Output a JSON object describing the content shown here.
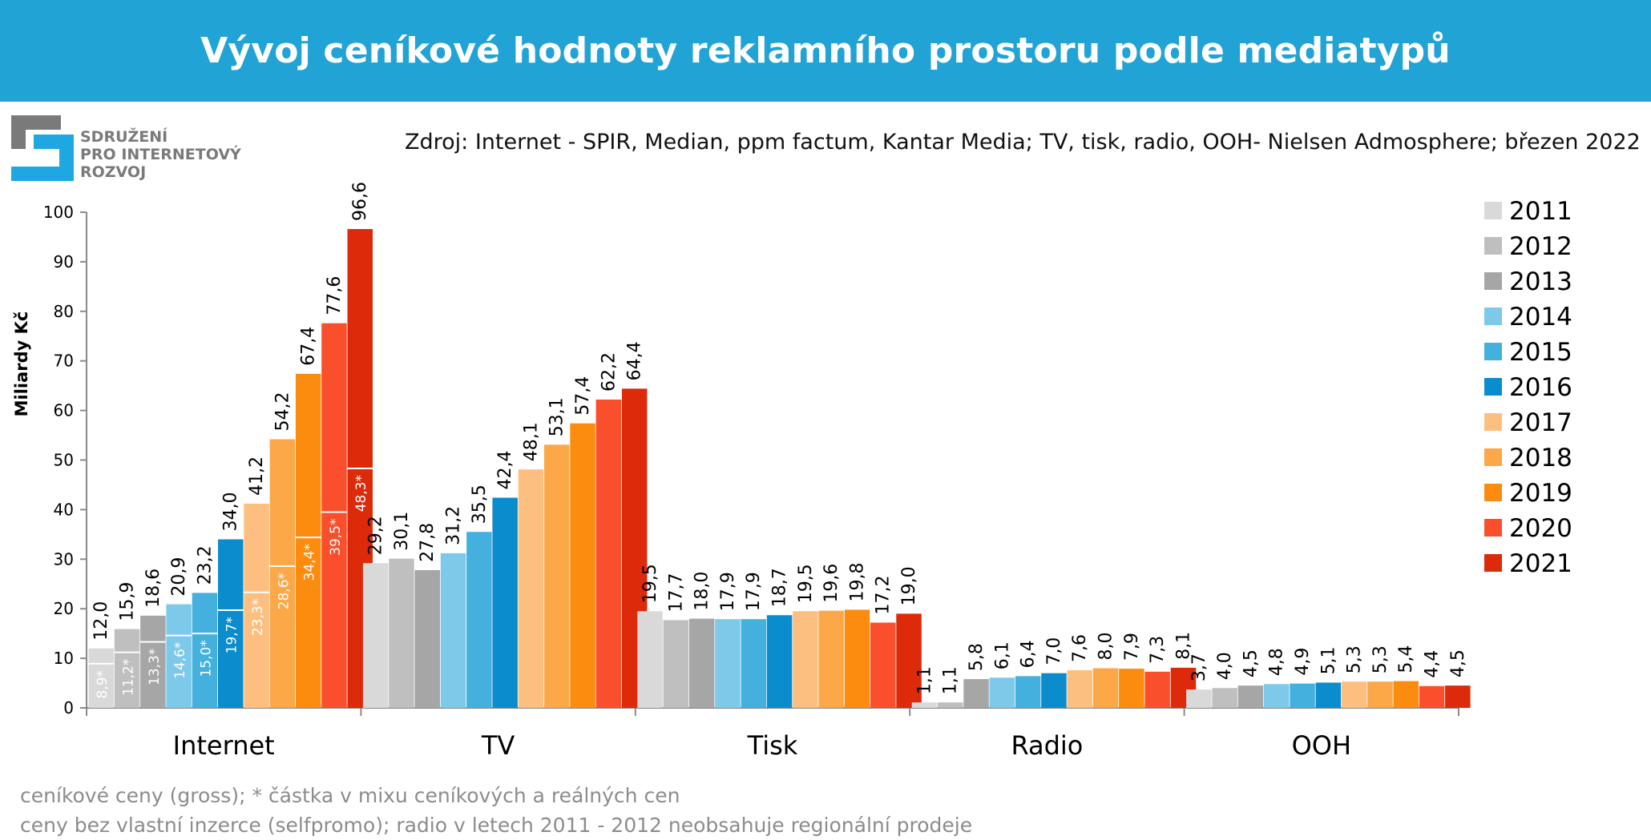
{
  "title": "Vývoj ceníkové hodnoty reklamního prostoru podle mediatypů",
  "logo_lines": [
    "SDRUŽENÍ",
    "PRO INTERNETOVÝ",
    "ROZVOJ"
  ],
  "source": "Zdroj: Internet - SPIR, Median, ppm factum, Kantar Media; TV, tisk, radio, OOH- Nielsen Admosphere; březen 2022",
  "footnotes": [
    "ceníkové ceny (gross); * částka v mixu ceníkových a reálných cen",
    "ceny bez vlastní inzerce (selfpromo); radio v letech 2011 - 2012 neobsahuje regionální prodeje"
  ],
  "colors": {
    "header_bg": "#21a3d6",
    "logo_gray": "#7a7a7a",
    "logo_blue": "#1ea7e1"
  },
  "chart_data": {
    "type": "bar",
    "ylabel": "Miliardy Kč",
    "ylim": [
      0,
      100
    ],
    "yticks": [
      "0",
      "10",
      "20",
      "30",
      "40",
      "50",
      "60",
      "70",
      "80",
      "90",
      "100"
    ],
    "categories": [
      "Internet",
      "TV",
      "Tisk",
      "Radio",
      "OOH"
    ],
    "legend_position": "right",
    "series": [
      {
        "name": "2011",
        "color": "#d9d9d9",
        "values": [
          12.0,
          29.2,
          19.5,
          1.1,
          3.7
        ],
        "labels": [
          "12,0",
          "29,2",
          "19,5",
          "1,1",
          "3,7"
        ]
      },
      {
        "name": "2012",
        "color": "#bfbfbf",
        "values": [
          15.9,
          30.1,
          17.7,
          1.1,
          4.0
        ],
        "labels": [
          "15,9",
          "30,1",
          "17,7",
          "1,1",
          "4,0"
        ]
      },
      {
        "name": "2013",
        "color": "#a6a6a6",
        "values": [
          18.6,
          27.8,
          18.0,
          5.8,
          4.5
        ],
        "labels": [
          "18,6",
          "27,8",
          "18,0",
          "5,8",
          "4,5"
        ]
      },
      {
        "name": "2014",
        "color": "#7cc9ea",
        "values": [
          20.9,
          31.2,
          17.9,
          6.1,
          4.8
        ],
        "labels": [
          "20,9",
          "31,2",
          "17,9",
          "6,1",
          "4,8"
        ]
      },
      {
        "name": "2015",
        "color": "#44b0de",
        "values": [
          23.2,
          35.5,
          17.9,
          6.4,
          4.9
        ],
        "labels": [
          "23,2",
          "35,5",
          "17,9",
          "6,4",
          "4,9"
        ]
      },
      {
        "name": "2016",
        "color": "#0b8ccc",
        "values": [
          34.0,
          42.4,
          18.7,
          7.0,
          5.1
        ],
        "labels": [
          "34,0",
          "42,4",
          "18,7",
          "7,0",
          "5,1"
        ]
      },
      {
        "name": "2017",
        "color": "#fdbf7f",
        "values": [
          41.2,
          48.1,
          19.5,
          7.6,
          5.3
        ],
        "labels": [
          "41,2",
          "48,1",
          "19,5",
          "7,6",
          "5,3"
        ]
      },
      {
        "name": "2018",
        "color": "#fca849",
        "values": [
          54.2,
          53.1,
          19.6,
          8.0,
          5.3
        ],
        "labels": [
          "54,2",
          "53,1",
          "19,6",
          "8,0",
          "5,3"
        ]
      },
      {
        "name": "2019",
        "color": "#fb8c0f",
        "values": [
          67.4,
          57.4,
          19.8,
          7.9,
          5.4
        ],
        "labels": [
          "67,4",
          "57,4",
          "19,8",
          "7,9",
          "5,4"
        ]
      },
      {
        "name": "2020",
        "color": "#fa4f2c",
        "values": [
          77.6,
          62.2,
          17.2,
          7.3,
          4.4
        ],
        "labels": [
          "77,6",
          "62,2",
          "17,2",
          "7,3",
          "4,4"
        ]
      },
      {
        "name": "2021",
        "color": "#dc2a0a",
        "values": [
          96.6,
          64.4,
          19.0,
          8.1,
          4.5
        ],
        "labels": [
          "96,6",
          "64,4",
          "19,0",
          "8,1",
          "4,5"
        ]
      }
    ],
    "internet_mixed_values": [
      8.9,
      11.2,
      13.3,
      14.6,
      15.0,
      19.7,
      23.3,
      28.6,
      34.4,
      39.5,
      48.3
    ],
    "internet_mixed_labels": [
      "8,9*",
      "11,2*",
      "13,3*",
      "14,6*",
      "15,0*",
      "19,7*",
      "23,3*",
      "28,6*",
      "34,4*",
      "39,5*",
      "48,3*"
    ]
  }
}
